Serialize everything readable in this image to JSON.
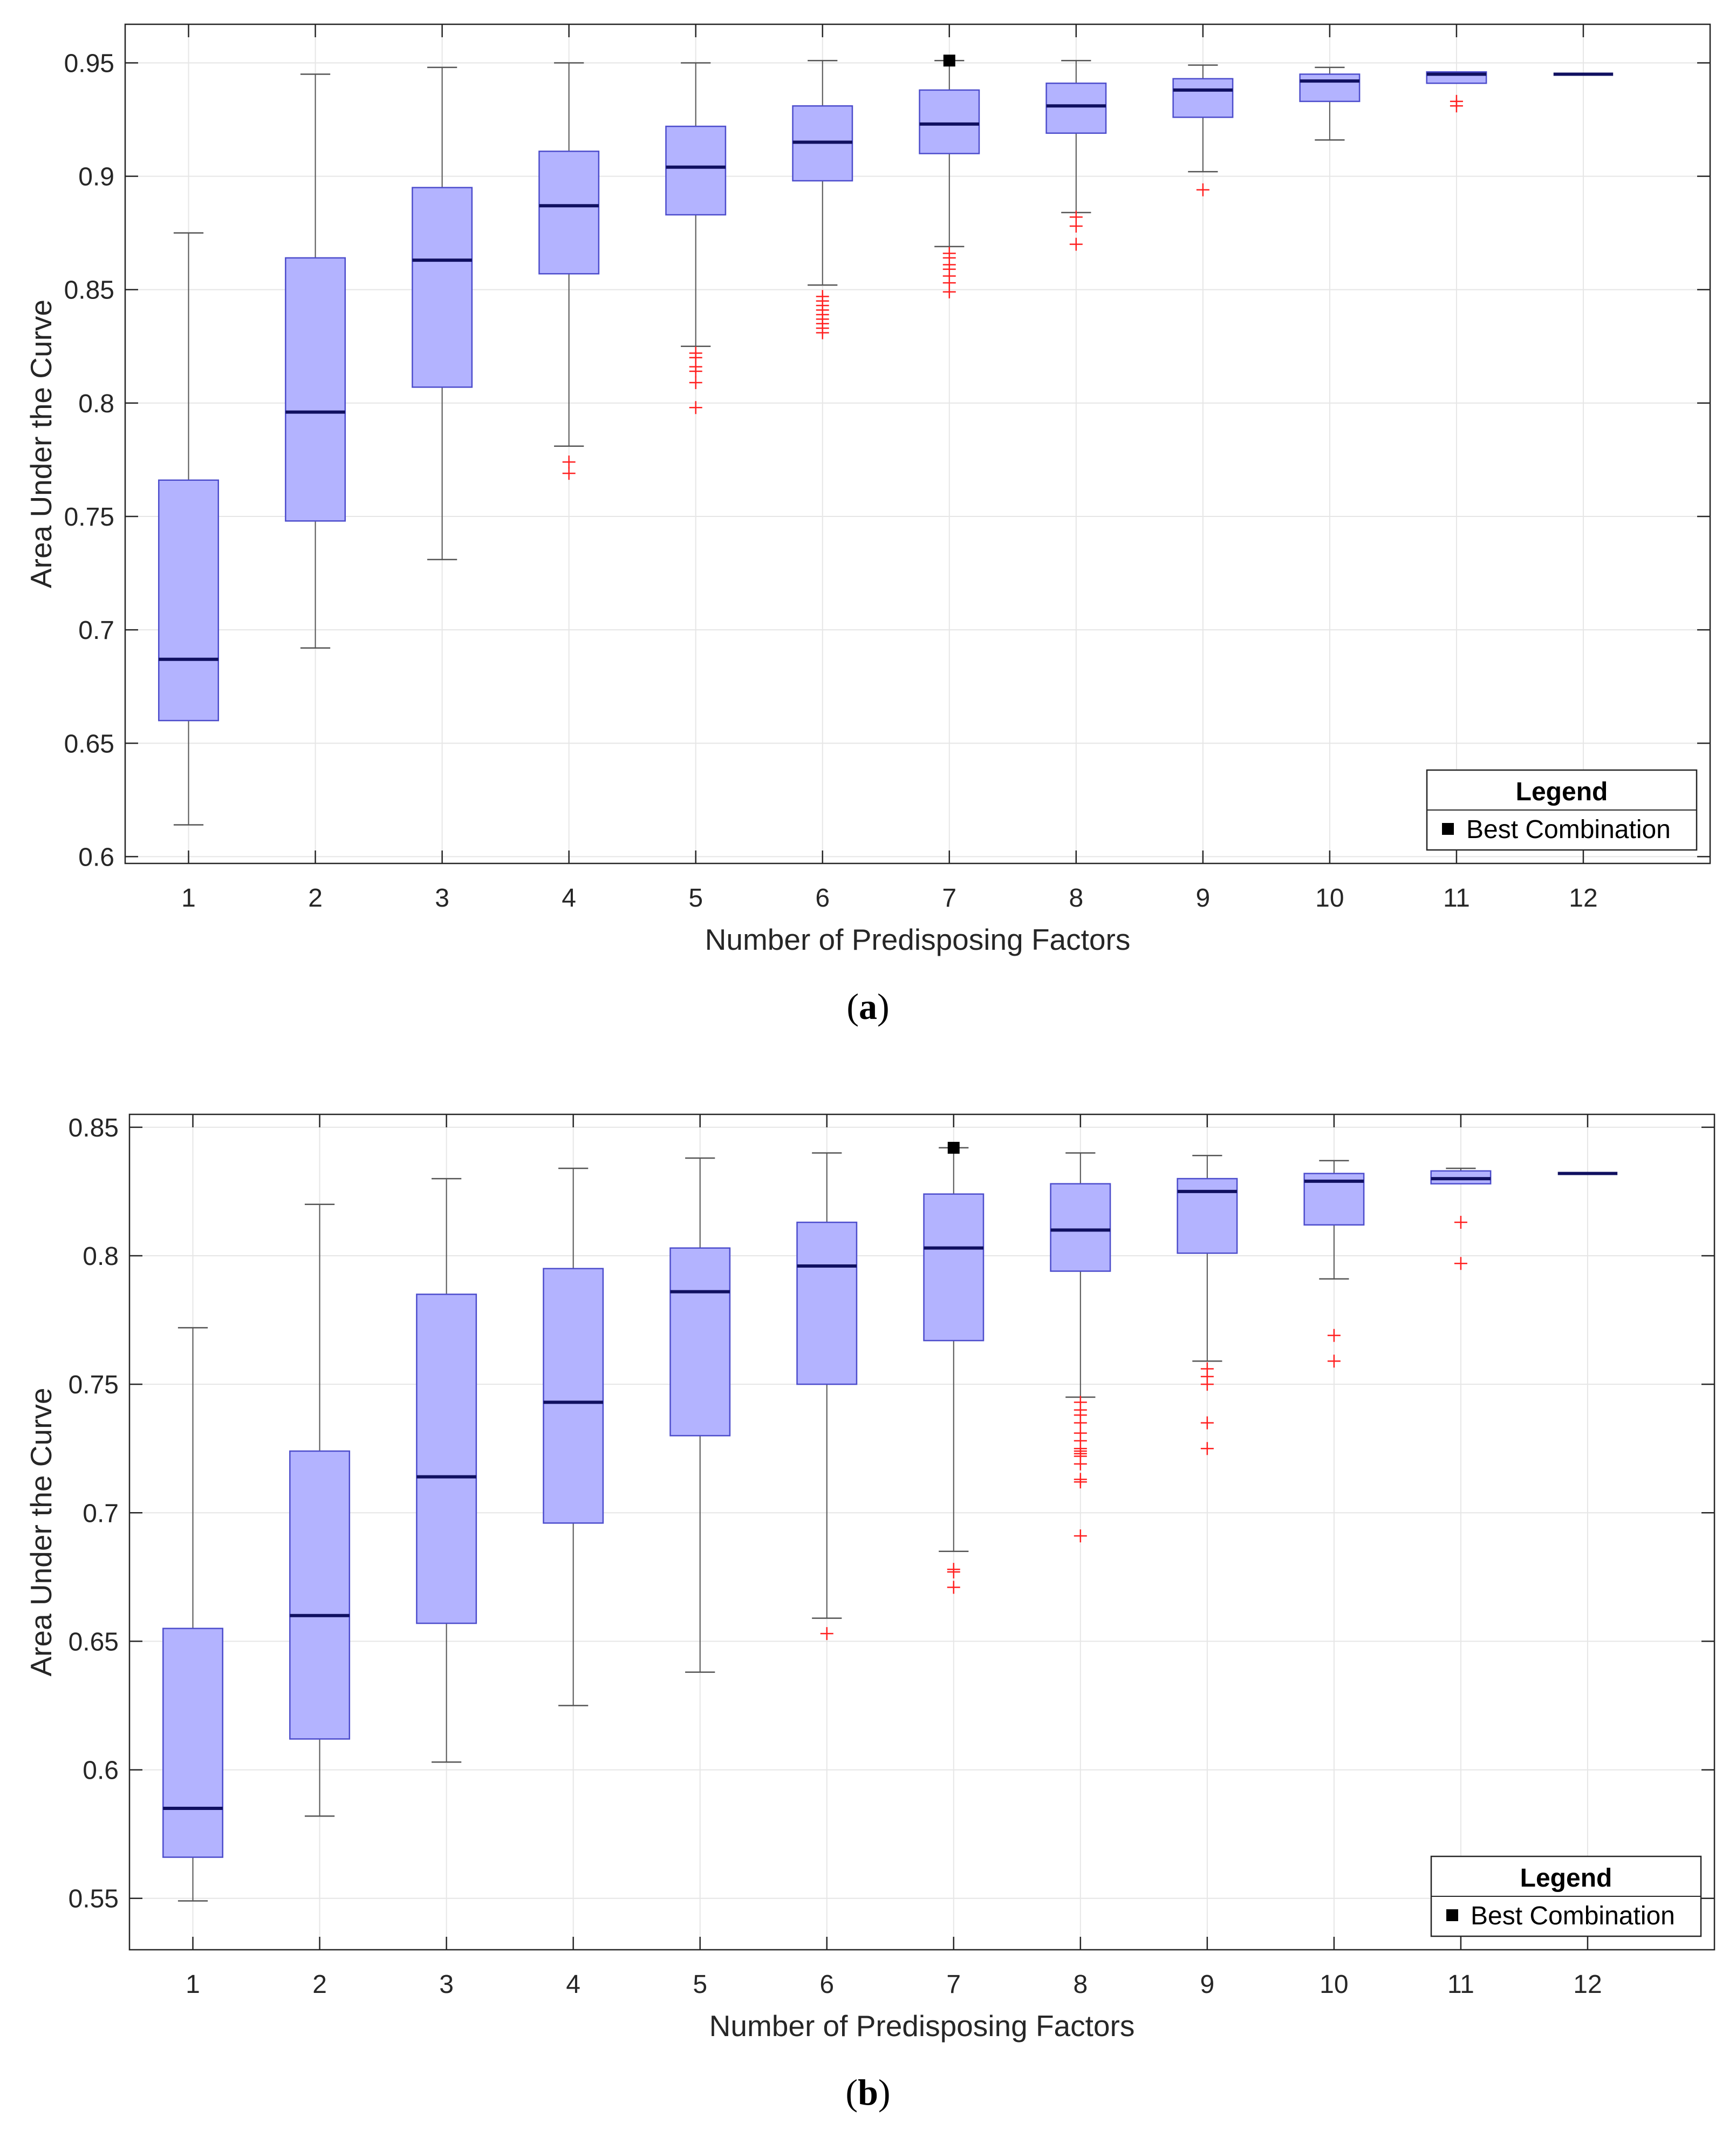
{
  "colors": {
    "box_fill": "#b3b3ff",
    "box_stroke": "#4d4dcc",
    "median": "#101060",
    "whisker": "#555555",
    "outlier": "#ff2020",
    "best": "#000000",
    "grid": "#e6e6e6",
    "axes": "#262626"
  },
  "chart_data": [
    {
      "id": "a",
      "type": "boxplot",
      "caption_letter": "a",
      "xlabel": "Number of Predisposing Factors",
      "ylabel": "Area Under the Curve",
      "categories": [
        "1",
        "2",
        "3",
        "4",
        "5",
        "6",
        "7",
        "8",
        "9",
        "10",
        "11",
        "12"
      ],
      "ylim": [
        0.597,
        0.967
      ],
      "yticks": [
        0.6,
        0.65,
        0.7,
        0.75,
        0.8,
        0.85,
        0.9,
        0.95
      ],
      "ytick_labels": [
        "0.6",
        "0.65",
        "0.7",
        "0.75",
        "0.8",
        "0.85",
        "0.9",
        "0.95"
      ],
      "grid": true,
      "legend": {
        "title": "Legend",
        "label": "Best Combination",
        "position": "bottom-right"
      },
      "boxes": [
        {
          "x": "1",
          "min": 0.614,
          "q1": 0.66,
          "median": 0.687,
          "q3": 0.766,
          "max": 0.875,
          "outliers": []
        },
        {
          "x": "2",
          "min": 0.692,
          "q1": 0.748,
          "median": 0.796,
          "q3": 0.864,
          "max": 0.945,
          "outliers": []
        },
        {
          "x": "3",
          "min": 0.731,
          "q1": 0.807,
          "median": 0.863,
          "q3": 0.895,
          "max": 0.948,
          "outliers": []
        },
        {
          "x": "4",
          "min": 0.781,
          "q1": 0.857,
          "median": 0.887,
          "q3": 0.911,
          "max": 0.95,
          "outliers": [
            0.774,
            0.769
          ]
        },
        {
          "x": "5",
          "min": 0.825,
          "q1": 0.883,
          "median": 0.904,
          "q3": 0.922,
          "max": 0.95,
          "outliers": [
            0.822,
            0.82,
            0.816,
            0.814,
            0.809,
            0.798
          ]
        },
        {
          "x": "6",
          "min": 0.852,
          "q1": 0.898,
          "median": 0.915,
          "q3": 0.931,
          "max": 0.951,
          "outliers": [
            0.847,
            0.845,
            0.843,
            0.841,
            0.839,
            0.837,
            0.835,
            0.833,
            0.831
          ]
        },
        {
          "x": "7",
          "min": 0.869,
          "q1": 0.91,
          "median": 0.923,
          "q3": 0.938,
          "max": 0.951,
          "outliers": [
            0.866,
            0.864,
            0.861,
            0.859,
            0.856,
            0.853,
            0.849
          ]
        },
        {
          "x": "8",
          "min": 0.884,
          "q1": 0.919,
          "median": 0.931,
          "q3": 0.941,
          "max": 0.951,
          "outliers": [
            0.882,
            0.878,
            0.87
          ]
        },
        {
          "x": "9",
          "min": 0.902,
          "q1": 0.926,
          "median": 0.938,
          "q3": 0.943,
          "max": 0.949,
          "outliers": [
            0.894
          ]
        },
        {
          "x": "10",
          "min": 0.916,
          "q1": 0.933,
          "median": 0.942,
          "q3": 0.945,
          "max": 0.948,
          "outliers": []
        },
        {
          "x": "11",
          "min": 0.941,
          "q1": 0.941,
          "median": 0.945,
          "q3": 0.946,
          "max": 0.946,
          "outliers": [
            0.933,
            0.931
          ]
        },
        {
          "x": "12",
          "min": 0.945,
          "q1": 0.945,
          "median": 0.945,
          "q3": 0.945,
          "max": 0.945,
          "outliers": []
        }
      ],
      "best": {
        "x": "7",
        "value": 0.951
      }
    },
    {
      "id": "b",
      "type": "boxplot",
      "caption_letter": "b",
      "xlabel": "Number of Predisposing Factors",
      "ylabel": "Area Under the Curve",
      "categories": [
        "1",
        "2",
        "3",
        "4",
        "5",
        "6",
        "7",
        "8",
        "9",
        "10",
        "11",
        "12"
      ],
      "ylim": [
        0.53,
        0.855
      ],
      "yticks": [
        0.55,
        0.6,
        0.65,
        0.7,
        0.75,
        0.8,
        0.85
      ],
      "ytick_labels": [
        "0.55",
        "0.6",
        "0.65",
        "0.7",
        "0.75",
        "0.8",
        "0.85"
      ],
      "grid": true,
      "legend": {
        "title": "Legend",
        "label": "Best Combination",
        "position": "bottom-right"
      },
      "boxes": [
        {
          "x": "1",
          "min": 0.549,
          "q1": 0.566,
          "median": 0.585,
          "q3": 0.655,
          "max": 0.772,
          "outliers": []
        },
        {
          "x": "2",
          "min": 0.582,
          "q1": 0.612,
          "median": 0.66,
          "q3": 0.724,
          "max": 0.82,
          "outliers": []
        },
        {
          "x": "3",
          "min": 0.603,
          "q1": 0.657,
          "median": 0.714,
          "q3": 0.785,
          "max": 0.83,
          "outliers": []
        },
        {
          "x": "4",
          "min": 0.625,
          "q1": 0.696,
          "median": 0.743,
          "q3": 0.795,
          "max": 0.834,
          "outliers": []
        },
        {
          "x": "5",
          "min": 0.638,
          "q1": 0.73,
          "median": 0.786,
          "q3": 0.803,
          "max": 0.838,
          "outliers": []
        },
        {
          "x": "6",
          "min": 0.659,
          "q1": 0.75,
          "median": 0.796,
          "q3": 0.813,
          "max": 0.84,
          "outliers": [
            0.653
          ]
        },
        {
          "x": "7",
          "min": 0.685,
          "q1": 0.767,
          "median": 0.803,
          "q3": 0.824,
          "max": 0.842,
          "outliers": [
            0.678,
            0.677,
            0.671
          ]
        },
        {
          "x": "8",
          "min": 0.745,
          "q1": 0.794,
          "median": 0.81,
          "q3": 0.828,
          "max": 0.84,
          "outliers": [
            0.743,
            0.74,
            0.738,
            0.735,
            0.731,
            0.728,
            0.725,
            0.724,
            0.723,
            0.722,
            0.719,
            0.713,
            0.712,
            0.691
          ]
        },
        {
          "x": "9",
          "min": 0.759,
          "q1": 0.801,
          "median": 0.825,
          "q3": 0.83,
          "max": 0.839,
          "outliers": [
            0.756,
            0.753,
            0.75,
            0.735,
            0.725
          ]
        },
        {
          "x": "10",
          "min": 0.791,
          "q1": 0.812,
          "median": 0.829,
          "q3": 0.832,
          "max": 0.837,
          "outliers": [
            0.769,
            0.759
          ]
        },
        {
          "x": "11",
          "min": 0.828,
          "q1": 0.828,
          "median": 0.83,
          "q3": 0.833,
          "max": 0.834,
          "outliers": [
            0.813,
            0.797
          ]
        },
        {
          "x": "12",
          "min": 0.832,
          "q1": 0.832,
          "median": 0.832,
          "q3": 0.832,
          "max": 0.832,
          "outliers": []
        }
      ],
      "best": {
        "x": "7",
        "value": 0.842
      }
    }
  ]
}
